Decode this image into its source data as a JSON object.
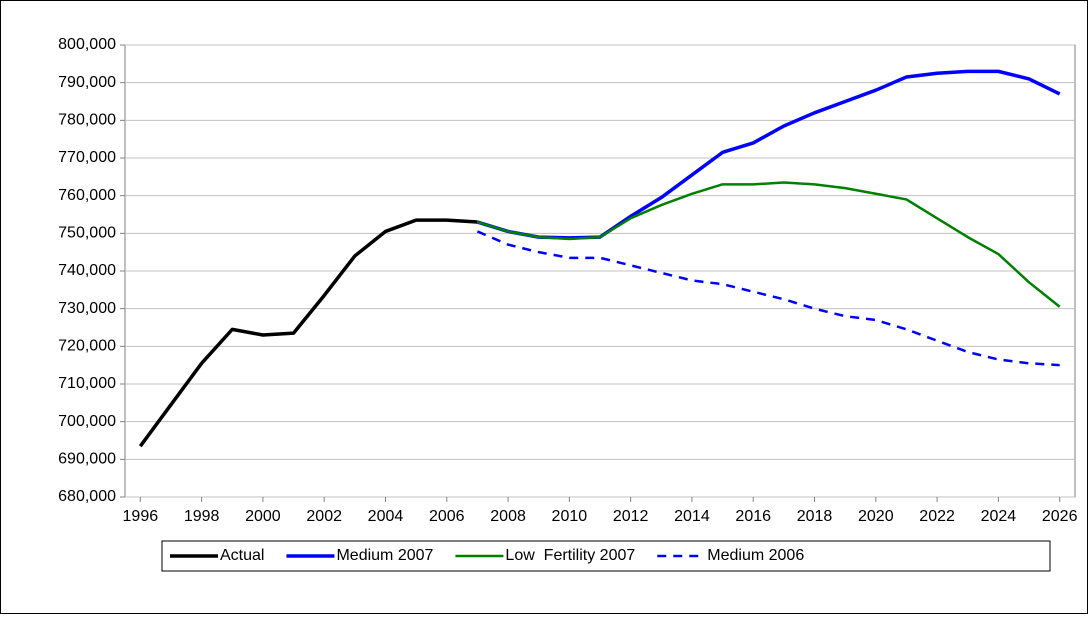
{
  "chart_data": {
    "type": "line",
    "x": [
      1996,
      1997,
      1998,
      1999,
      2000,
      2001,
      2002,
      2003,
      2004,
      2005,
      2006,
      2007,
      2008,
      2009,
      2010,
      2011,
      2012,
      2013,
      2014,
      2015,
      2016,
      2017,
      2018,
      2019,
      2020,
      2021,
      2022,
      2023,
      2024,
      2025,
      2026
    ],
    "series": [
      {
        "name": "Actual",
        "color": "#000000",
        "linewidth": 3.5,
        "linestyle": "solid",
        "values": [
          693500,
          704500,
          715500,
          724500,
          723000,
          723500,
          733500,
          744000,
          750500,
          753500,
          753500,
          753000,
          null,
          null,
          null,
          null,
          null,
          null,
          null,
          null,
          null,
          null,
          null,
          null,
          null,
          null,
          null,
          null,
          null,
          null,
          null
        ]
      },
      {
        "name": "Medium 2007",
        "color": "#0000ff",
        "linewidth": 3.5,
        "linestyle": "solid",
        "values": [
          null,
          null,
          null,
          null,
          null,
          null,
          null,
          null,
          null,
          null,
          null,
          753000,
          750500,
          749000,
          748800,
          749000,
          754500,
          759500,
          765500,
          771500,
          774000,
          778500,
          782000,
          785000,
          788000,
          791500,
          792500,
          793000,
          793000,
          791000,
          787000
        ]
      },
      {
        "name": "Low  Fertility 2007",
        "color": "#008000",
        "linewidth": 2.5,
        "linestyle": "solid",
        "values": [
          null,
          null,
          null,
          null,
          null,
          null,
          null,
          null,
          null,
          null,
          null,
          753000,
          750500,
          749000,
          748500,
          749000,
          754000,
          757500,
          760500,
          763000,
          763000,
          763500,
          763000,
          762000,
          760500,
          759000,
          754000,
          749000,
          744500,
          737000,
          730500
        ]
      },
      {
        "name": "Medium 2006",
        "color": "#0000ff",
        "linewidth": 2.5,
        "linestyle": "dashed",
        "values": [
          null,
          null,
          null,
          null,
          null,
          null,
          null,
          null,
          null,
          null,
          null,
          750500,
          747000,
          745000,
          743500,
          743500,
          741500,
          739500,
          737500,
          736500,
          734500,
          732500,
          730000,
          728000,
          727000,
          724500,
          721500,
          718500,
          716500,
          715500,
          715000
        ]
      }
    ],
    "xlim": [
      1995.5,
      2026.5
    ],
    "xticks": [
      1996,
      1998,
      2000,
      2002,
      2004,
      2006,
      2008,
      2010,
      2012,
      2014,
      2016,
      2018,
      2020,
      2022,
      2024,
      2026
    ],
    "ylim": [
      680000,
      800000
    ],
    "yticks": [
      {
        "value": 680000,
        "label": "680,000"
      },
      {
        "value": 690000,
        "label": "690,000"
      },
      {
        "value": 700000,
        "label": "700,000"
      },
      {
        "value": 710000,
        "label": "710,000"
      },
      {
        "value": 720000,
        "label": "720,000"
      },
      {
        "value": 730000,
        "label": "730,000"
      },
      {
        "value": 740000,
        "label": "740,000"
      },
      {
        "value": 750000,
        "label": "750,000"
      },
      {
        "value": 760000,
        "label": "760,000"
      },
      {
        "value": 770000,
        "label": "770,000"
      },
      {
        "value": 780000,
        "label": "780,000"
      },
      {
        "value": 790000,
        "label": "790,000"
      },
      {
        "value": 800000,
        "label": "800,000"
      }
    ],
    "grid": true,
    "legend": "bottom"
  }
}
